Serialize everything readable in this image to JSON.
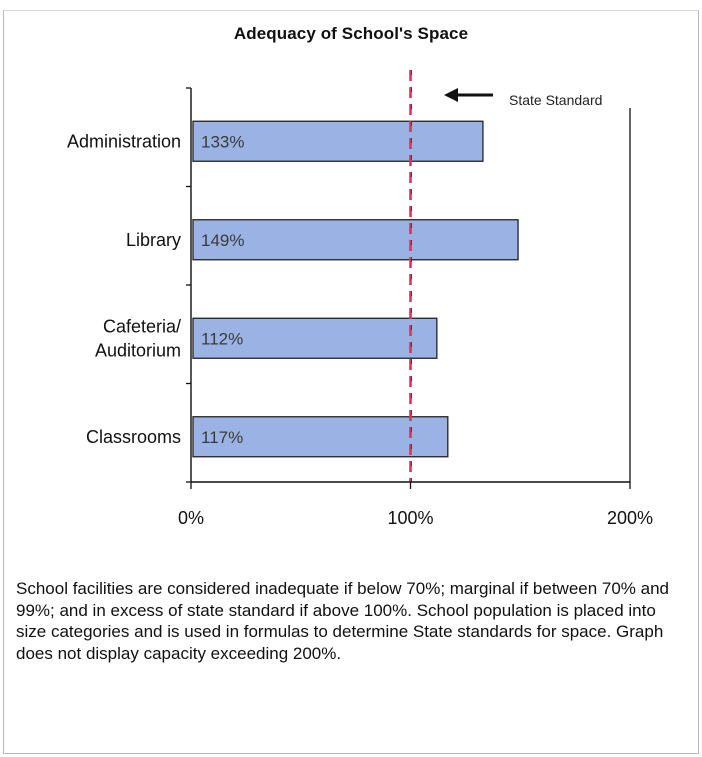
{
  "chart_data": {
    "type": "bar",
    "orientation": "horizontal",
    "title": "Adequacy of School's Space",
    "categories": [
      "Administration",
      "Library",
      "Cafeteria/\nAuditorium",
      "Classrooms"
    ],
    "values": [
      133,
      149,
      112,
      117
    ],
    "data_labels": [
      "133%",
      "149%",
      "112%",
      "117%"
    ],
    "xlim": [
      0,
      200
    ],
    "x_ticks": [
      0,
      100,
      200
    ],
    "x_tick_labels": [
      "0%",
      "100%",
      "200%"
    ],
    "xlabel": "",
    "ylabel": "",
    "grid": false,
    "legend": "none",
    "reference_line": {
      "value": 100,
      "label": "State Standard",
      "color": "#e0315e",
      "style": "dashed"
    },
    "bar_color": "#9bb3e4",
    "bar_edge_color": "#222222"
  },
  "note": "School facilities are considered inadequate if below 70%; marginal if between 70% and 99%; and in excess of state standard if above 100%.  School population is placed into size categories and is used in formulas to determine State standards for space.  Graph does not display capacity exceeding 200%."
}
